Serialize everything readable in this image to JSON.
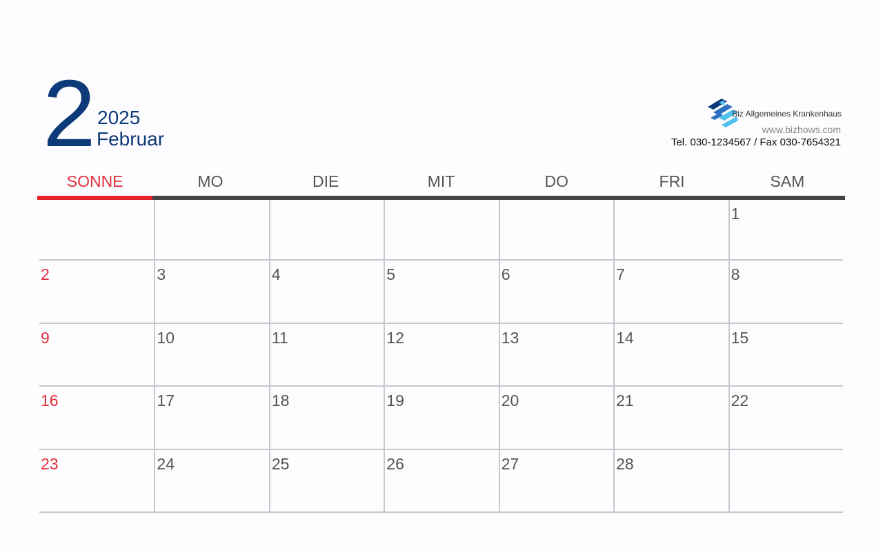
{
  "header": {
    "month_number": "2",
    "year": "2025",
    "month_name": "Februar"
  },
  "company": {
    "name": "Biz Allgemeines Krankenhaus",
    "website": "www.bizhows.com",
    "contact": "Tel. 030-1234567 / Fax 030-7654321"
  },
  "weekdays": [
    "SONNE",
    "MO",
    "DIE",
    "MIT",
    "DO",
    "FRI",
    "SAM"
  ],
  "weeks": [
    [
      "",
      "",
      "",
      "",
      "",
      "",
      "1"
    ],
    [
      "2",
      "3",
      "4",
      "5",
      "6",
      "7",
      "8"
    ],
    [
      "9",
      "10",
      "11",
      "12",
      "13",
      "14",
      "15"
    ],
    [
      "16",
      "17",
      "18",
      "19",
      "20",
      "21",
      "22"
    ],
    [
      "23",
      "24",
      "25",
      "26",
      "27",
      "28",
      ""
    ]
  ],
  "colors": {
    "accent": "#0d3a78",
    "sunday": "#e0303c",
    "header_bar": "#444444"
  }
}
